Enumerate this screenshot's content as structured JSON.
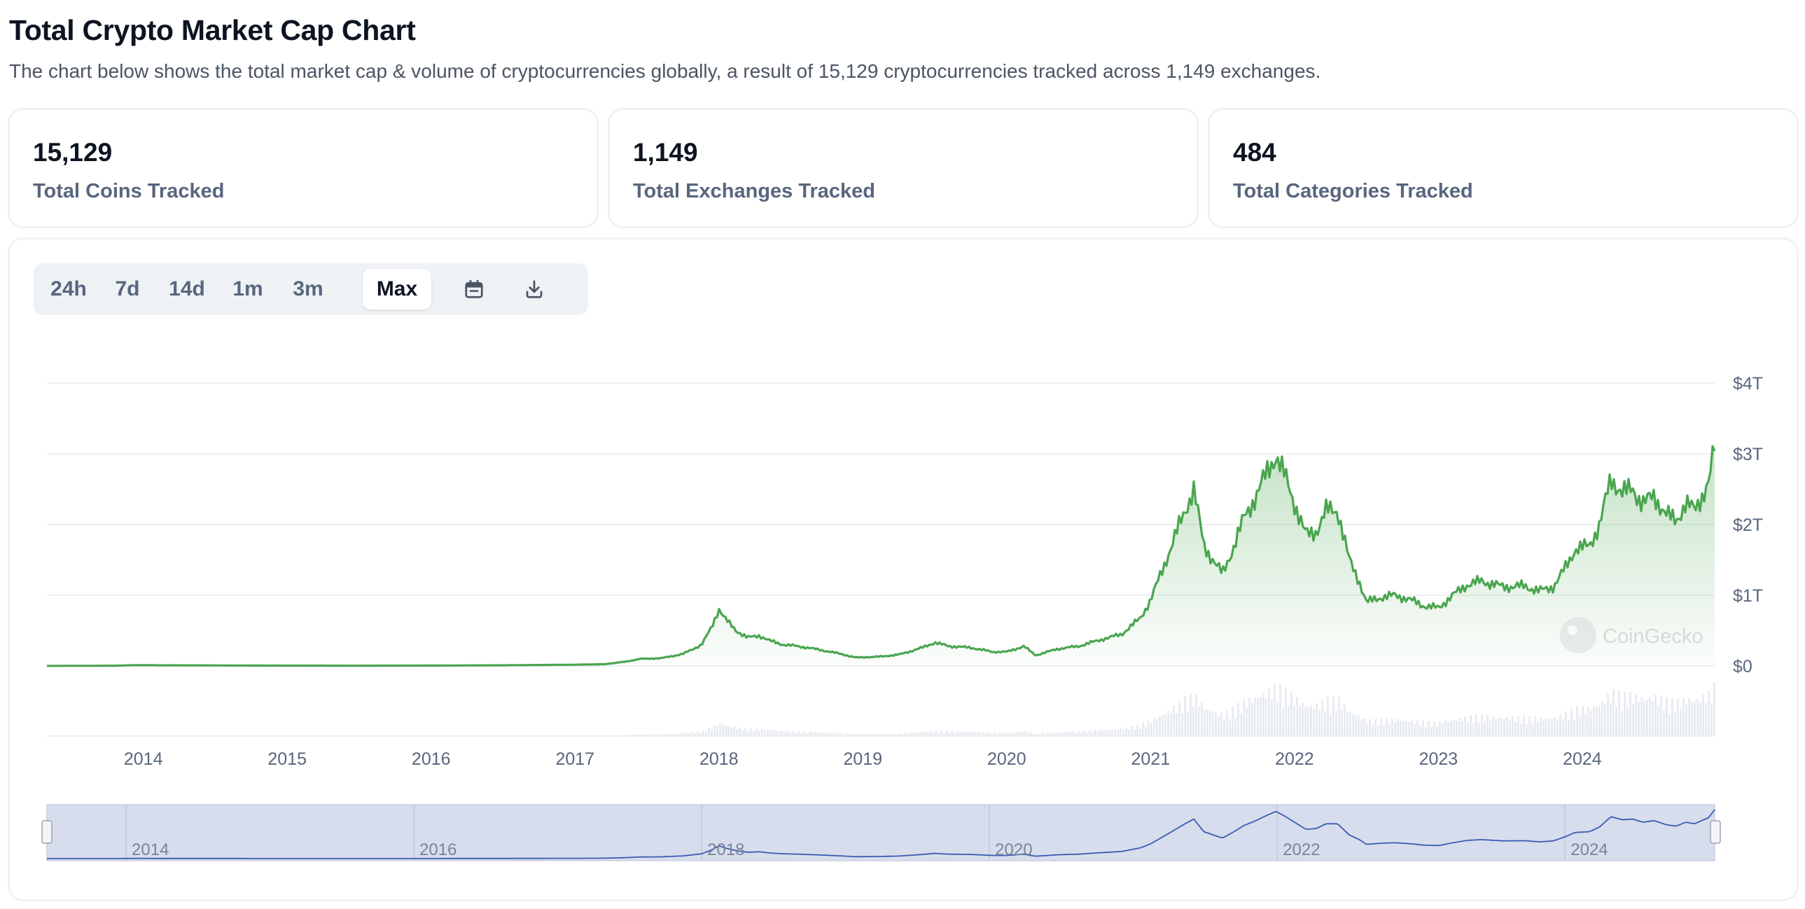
{
  "page": {
    "title": "Total Crypto Market Cap Chart",
    "subtitle": "The chart below shows the total market cap & volume of cryptocurrencies globally, a result of 15,129 cryptocurrencies tracked across 1,149 exchanges."
  },
  "stats": [
    {
      "value": "15,129",
      "label": "Total Coins Tracked"
    },
    {
      "value": "1,149",
      "label": "Total Exchanges Tracked"
    },
    {
      "value": "484",
      "label": "Total Categories Tracked"
    }
  ],
  "range_buttons": [
    "24h",
    "7d",
    "14d",
    "1m",
    "3m",
    "Max"
  ],
  "active_range": "Max",
  "toolbar_icons": [
    "calendar-icon",
    "download-icon"
  ],
  "watermark": "CoinGecko",
  "colors": {
    "line": "#4aa54f",
    "area_top": "#4aa54f",
    "volume": "#e9ecf1",
    "navigator_fill": "#d7dded",
    "navigator_line": "#3b5bb3",
    "grid": "#edf0f3",
    "axis_text": "#58667e"
  },
  "chart_data": {
    "type": "area",
    "xlabel": "",
    "ylabel": "",
    "x_ticks": [
      "2014",
      "2015",
      "2016",
      "2017",
      "2018",
      "2019",
      "2020",
      "2021",
      "2022",
      "2023",
      "2024"
    ],
    "y_ticks": [
      "$0",
      "$1T",
      "$2T",
      "$3T",
      "$4T"
    ],
    "ylim": [
      0,
      4
    ],
    "xlim": [
      2013.33,
      2024.92
    ],
    "series": [
      {
        "values": [
          [
            2013.33,
            0.002
          ],
          [
            2013.8,
            0.004
          ],
          [
            2013.95,
            0.012
          ],
          [
            2014.1,
            0.01
          ],
          [
            2014.5,
            0.008
          ],
          [
            2015.0,
            0.005
          ],
          [
            2015.5,
            0.004
          ],
          [
            2016.0,
            0.006
          ],
          [
            2016.5,
            0.01
          ],
          [
            2017.0,
            0.018
          ],
          [
            2017.2,
            0.025
          ],
          [
            2017.35,
            0.06
          ],
          [
            2017.45,
            0.1
          ],
          [
            2017.6,
            0.11
          ],
          [
            2017.75,
            0.17
          ],
          [
            2017.88,
            0.3
          ],
          [
            2017.95,
            0.55
          ],
          [
            2018.0,
            0.81
          ],
          [
            2018.05,
            0.65
          ],
          [
            2018.12,
            0.5
          ],
          [
            2018.2,
            0.4
          ],
          [
            2018.28,
            0.43
          ],
          [
            2018.35,
            0.36
          ],
          [
            2018.45,
            0.3
          ],
          [
            2018.55,
            0.28
          ],
          [
            2018.7,
            0.23
          ],
          [
            2018.85,
            0.17
          ],
          [
            2018.95,
            0.12
          ],
          [
            2019.1,
            0.13
          ],
          [
            2019.25,
            0.16
          ],
          [
            2019.4,
            0.25
          ],
          [
            2019.5,
            0.33
          ],
          [
            2019.6,
            0.28
          ],
          [
            2019.75,
            0.26
          ],
          [
            2019.9,
            0.2
          ],
          [
            2020.0,
            0.2
          ],
          [
            2020.12,
            0.28
          ],
          [
            2020.2,
            0.15
          ],
          [
            2020.35,
            0.24
          ],
          [
            2020.5,
            0.28
          ],
          [
            2020.65,
            0.37
          ],
          [
            2020.8,
            0.45
          ],
          [
            2020.93,
            0.68
          ],
          [
            2021.0,
            0.93
          ],
          [
            2021.08,
            1.35
          ],
          [
            2021.15,
            1.72
          ],
          [
            2021.22,
            2.1
          ],
          [
            2021.3,
            2.5
          ],
          [
            2021.37,
            1.7
          ],
          [
            2021.45,
            1.45
          ],
          [
            2021.5,
            1.3
          ],
          [
            2021.58,
            1.7
          ],
          [
            2021.65,
            2.1
          ],
          [
            2021.72,
            2.35
          ],
          [
            2021.8,
            2.7
          ],
          [
            2021.87,
            2.98
          ],
          [
            2021.93,
            2.7
          ],
          [
            2022.0,
            2.3
          ],
          [
            2022.08,
            1.85
          ],
          [
            2022.15,
            1.9
          ],
          [
            2022.22,
            2.2
          ],
          [
            2022.3,
            2.2
          ],
          [
            2022.38,
            1.5
          ],
          [
            2022.45,
            1.2
          ],
          [
            2022.5,
            0.9
          ],
          [
            2022.6,
            0.97
          ],
          [
            2022.7,
            1.0
          ],
          [
            2022.8,
            0.94
          ],
          [
            2022.9,
            0.85
          ],
          [
            2023.0,
            0.82
          ],
          [
            2023.1,
            1.0
          ],
          [
            2023.2,
            1.15
          ],
          [
            2023.3,
            1.2
          ],
          [
            2023.45,
            1.12
          ],
          [
            2023.6,
            1.13
          ],
          [
            2023.7,
            1.06
          ],
          [
            2023.8,
            1.12
          ],
          [
            2023.88,
            1.38
          ],
          [
            2023.95,
            1.65
          ],
          [
            2024.05,
            1.7
          ],
          [
            2024.12,
            2.0
          ],
          [
            2024.2,
            2.65
          ],
          [
            2024.28,
            2.45
          ],
          [
            2024.35,
            2.5
          ],
          [
            2024.42,
            2.3
          ],
          [
            2024.5,
            2.4
          ],
          [
            2024.58,
            2.15
          ],
          [
            2024.65,
            2.05
          ],
          [
            2024.72,
            2.3
          ],
          [
            2024.78,
            2.2
          ],
          [
            2024.83,
            2.4
          ],
          [
            2024.88,
            2.6
          ],
          [
            2024.92,
            3.1
          ]
        ]
      }
    ],
    "navigator_ticks": [
      "2014",
      "2016",
      "2018",
      "2020",
      "2022",
      "2024"
    ],
    "grid": true,
    "legend": "none"
  }
}
